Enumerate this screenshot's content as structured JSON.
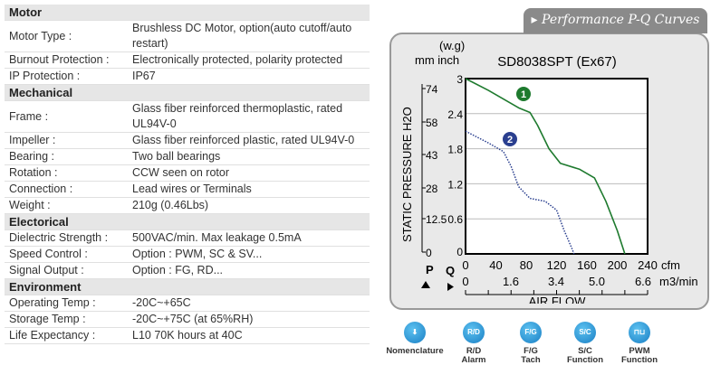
{
  "spec": [
    {
      "section": "Motor"
    },
    {
      "label": "Motor Type :",
      "value": "Brushless DC Motor, option(auto cutoff/auto restart)"
    },
    {
      "label": "Burnout Protection :",
      "value": "Electronically protected, polarity protected"
    },
    {
      "label": "IP Protection :",
      "value": "IP67"
    },
    {
      "section": "Mechanical"
    },
    {
      "label": "Frame :",
      "value": "Glass fiber reinforced thermoplastic, rated UL94V-0"
    },
    {
      "label": "Impeller :",
      "value": "Glass fiber reinforced plastic, rated UL94V-0"
    },
    {
      "label": "Bearing :",
      "value": "Two ball bearings"
    },
    {
      "label": "Rotation :",
      "value": "CCW seen on rotor"
    },
    {
      "label": "Connection :",
      "value": "Lead wires or Terminals"
    },
    {
      "label": "Weight :",
      "value": "210g (0.46Lbs)"
    },
    {
      "section": "Electorical"
    },
    {
      "label": "Dielectric Strength :",
      "value": "500VAC/min. Max leakage 0.5mA"
    },
    {
      "label": "Speed Control :",
      "value": "Option : PWM, SC & SV..."
    },
    {
      "label": "Signal Output :",
      "value": "Option : FG, RD..."
    },
    {
      "section": "Environment"
    },
    {
      "label": "Operating Temp :",
      "value": "-20C~+65C"
    },
    {
      "label": "Storage Temp :",
      "value": "-20C~+75C (at 65%RH)"
    },
    {
      "label": "Life Expectancy :",
      "value": "L10 70K hours at 40C"
    }
  ],
  "panel_tab": "Performance P-Q Curves",
  "chart_data": {
    "type": "line",
    "title": "SD8038SPT (Ex67)",
    "ylabel": "STATIC PRESSURE H2O",
    "y_unit_top": "(w.g)",
    "y_units": "mm inch",
    "xlabel": "AIR FLOW",
    "x_unit": "cfm",
    "x2_unit": "m3/min",
    "p_label": "P",
    "q_label": "Q",
    "xlim": [
      0,
      240
    ],
    "ylim": [
      0,
      3
    ],
    "x_ticks": [
      "0",
      "40",
      "80",
      "120",
      "160",
      "200",
      "240"
    ],
    "x2_ticks": [
      "0",
      "1.6",
      "3.4",
      "5.0",
      "6.6"
    ],
    "y_ticks": [
      "0",
      "0.6",
      "1.2",
      "1.8",
      "2.4",
      "3"
    ],
    "y_mm_ticks": [
      "0",
      "12.5",
      "28",
      "43",
      "58",
      "74"
    ],
    "series": [
      {
        "name": "1",
        "color": "#1e7a2e",
        "style": "solid",
        "x": [
          0,
          30,
          70,
          85,
          95,
          110,
          125,
          150,
          170,
          185,
          200,
          210
        ],
        "y": [
          3,
          2.8,
          2.5,
          2.42,
          2.2,
          1.8,
          1.55,
          1.45,
          1.3,
          0.9,
          0.4,
          0
        ]
      },
      {
        "name": "2",
        "color": "#2a3f8f",
        "style": "dotted",
        "x": [
          0,
          30,
          50,
          60,
          70,
          85,
          105,
          120,
          130,
          140,
          143
        ],
        "y": [
          2.1,
          1.9,
          1.75,
          1.5,
          1.15,
          0.95,
          0.9,
          0.75,
          0.4,
          0.1,
          0
        ]
      }
    ]
  },
  "icons": [
    {
      "glyph": "⬇",
      "label1": "Nomenclature",
      "label2": ""
    },
    {
      "glyph": "R/D",
      "label1": "R/D",
      "label2": "Alarm"
    },
    {
      "glyph": "F/G",
      "label1": "F/G",
      "label2": "Tach"
    },
    {
      "glyph": "S/C",
      "label1": "S/C",
      "label2": "Function"
    },
    {
      "glyph": "⊓⊔",
      "label1": "PWM",
      "label2": "Function"
    }
  ]
}
